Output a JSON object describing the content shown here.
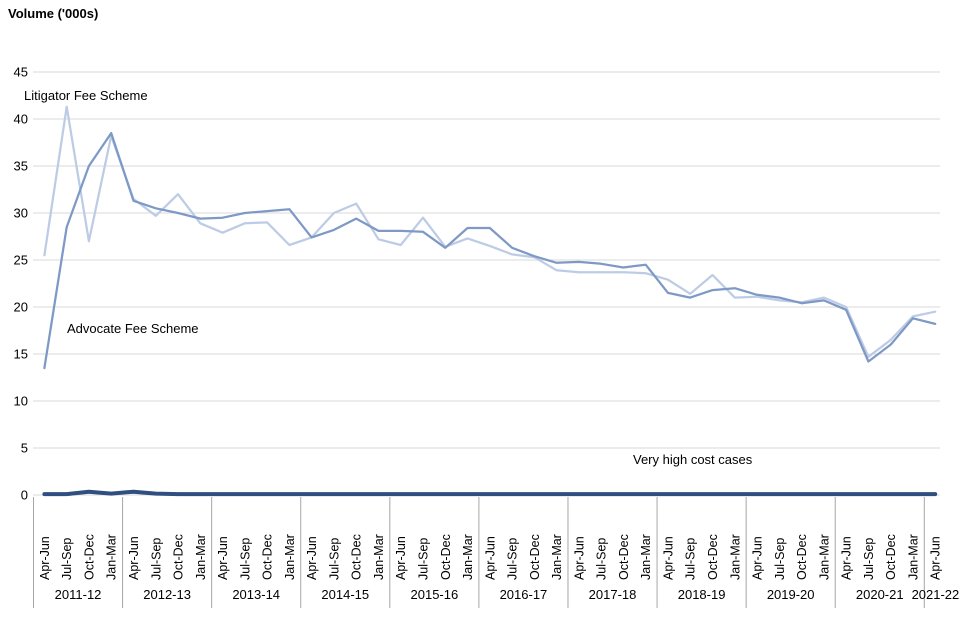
{
  "chart": {
    "title": "Volume ('000s)",
    "annotations": {
      "litigator": "Litigator Fee Scheme",
      "advocate": "Advocate Fee Scheme",
      "vhcc": "Very high cost cases"
    }
  },
  "chart_data": {
    "type": "line",
    "title": "Volume ('000s)",
    "ylabel": "Volume ('000s)",
    "xlabel": "",
    "ylim": [
      0,
      45
    ],
    "y_ticks": [
      0,
      5,
      10,
      15,
      20,
      25,
      30,
      35,
      40,
      45
    ],
    "grid": "horizontal",
    "legend_position": "in-plot text annotations",
    "x_quarter_labels": [
      "Apr-Jun",
      "Jul-Sep",
      "Oct-Dec",
      "Jan-Mar",
      "Apr-Jun",
      "Jul-Sep",
      "Oct-Dec",
      "Jan-Mar",
      "Apr-Jun",
      "Jul-Sep",
      "Oct-Dec",
      "Jan-Mar",
      "Apr-Jun",
      "Jul-Sep",
      "Oct-Dec",
      "Jan-Mar",
      "Apr-Jun",
      "Jul-Sep",
      "Oct-Dec",
      "Jan-Mar",
      "Apr-Jun",
      "Jul-Sep",
      "Oct-Dec",
      "Jan-Mar",
      "Apr-Jun",
      "Jul-Sep",
      "Oct-Dec",
      "Jan-Mar",
      "Apr-Jun",
      "Jul-Sep",
      "Oct-Dec",
      "Jan-Mar",
      "Apr-Jun",
      "Jul-Sep",
      "Oct-Dec",
      "Jan-Mar",
      "Apr-Jun",
      "Jul-Sep",
      "Oct-Dec",
      "Jan-Mar",
      "Apr-Jun"
    ],
    "year_groups": [
      {
        "label": "2011-12",
        "quarters": 4
      },
      {
        "label": "2012-13",
        "quarters": 4
      },
      {
        "label": "2013-14",
        "quarters": 4
      },
      {
        "label": "2014-15",
        "quarters": 4
      },
      {
        "label": "2015-16",
        "quarters": 4
      },
      {
        "label": "2016-17",
        "quarters": 4
      },
      {
        "label": "2017-18",
        "quarters": 4
      },
      {
        "label": "2018-19",
        "quarters": 4
      },
      {
        "label": "2019-20",
        "quarters": 4
      },
      {
        "label": "2020-21",
        "quarters": 4
      },
      {
        "label": "2021-22",
        "quarters": 1
      }
    ],
    "series": [
      {
        "name": "Litigator Fee Scheme",
        "color": "#bdcce5",
        "stroke_width": 2.25,
        "values": [
          25.5,
          41.3,
          27.0,
          38.2,
          31.5,
          29.7,
          32.0,
          28.9,
          27.9,
          28.9,
          29.0,
          26.6,
          27.4,
          30.0,
          31.0,
          27.2,
          26.6,
          29.5,
          26.4,
          27.3,
          26.5,
          25.6,
          25.3,
          23.9,
          23.7,
          23.7,
          23.7,
          23.6,
          22.9,
          21.4,
          23.4,
          21.0,
          21.1,
          20.7,
          20.5,
          21.0,
          20.0,
          14.7,
          16.5,
          19.0,
          19.5
        ]
      },
      {
        "name": "Advocate Fee Scheme",
        "color": "#7e99c5",
        "stroke_width": 2.25,
        "values": [
          13.5,
          28.5,
          35.0,
          38.5,
          31.3,
          30.5,
          30.0,
          29.4,
          29.5,
          30.0,
          30.2,
          30.4,
          27.4,
          28.2,
          29.4,
          28.1,
          28.1,
          28.0,
          26.3,
          28.4,
          28.4,
          26.3,
          25.4,
          24.7,
          24.8,
          24.6,
          24.2,
          24.5,
          21.5,
          21.0,
          21.8,
          22.0,
          21.3,
          21.0,
          20.4,
          20.7,
          19.7,
          14.2,
          16.0,
          18.8,
          18.2
        ]
      },
      {
        "name": "Very high cost cases",
        "color": "#2e4f7f",
        "stroke_width": 4,
        "values": [
          0.1,
          0.1,
          0.35,
          0.15,
          0.35,
          0.15,
          0.1,
          0.1,
          0.1,
          0.1,
          0.1,
          0.1,
          0.1,
          0.1,
          0.1,
          0.1,
          0.1,
          0.1,
          0.1,
          0.1,
          0.1,
          0.1,
          0.1,
          0.1,
          0.1,
          0.1,
          0.1,
          0.1,
          0.1,
          0.1,
          0.1,
          0.1,
          0.1,
          0.1,
          0.1,
          0.1,
          0.1,
          0.1,
          0.1,
          0.1,
          0.1
        ]
      }
    ],
    "style": {
      "gridline_color": "#d9d9d9",
      "separator_color": "#a6a6a6",
      "text_color": "#000000",
      "background": "#ffffff"
    }
  }
}
